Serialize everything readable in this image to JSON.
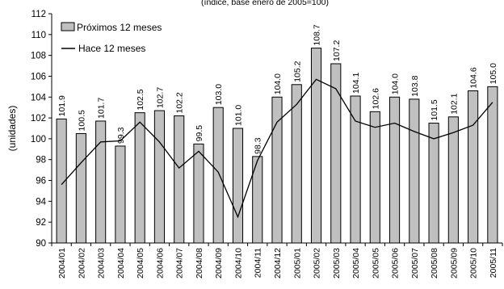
{
  "chart_data": {
    "type": "bar",
    "subtitle": "(índice, base enero de 2005=100)",
    "ylabel": "(unidades)",
    "xlabel": "",
    "ylim": [
      90,
      112
    ],
    "y_ticks": [
      90,
      92,
      94,
      96,
      98,
      100,
      102,
      104,
      106,
      108,
      110,
      112
    ],
    "grid": false,
    "legend_position": "top-left",
    "categories": [
      "2004/01",
      "2004/02",
      "2004/03",
      "2004/04",
      "2004/05",
      "2004/06",
      "2004/07",
      "2004/08",
      "2004/09",
      "2004/10",
      "2004/11",
      "2004/12",
      "2005/01",
      "2005/02",
      "2005/03",
      "2005/04",
      "2005/05",
      "2005/06",
      "2005/07",
      "2005/08",
      "2005/09",
      "2005/10",
      "2005/11"
    ],
    "series": [
      {
        "name": "Próximos 12 meses",
        "kind": "bar",
        "color": "#c0c0c0",
        "values": [
          101.9,
          100.5,
          101.7,
          99.3,
          102.5,
          102.7,
          102.2,
          99.5,
          103.0,
          101.0,
          98.3,
          104.0,
          105.2,
          108.7,
          107.2,
          104.1,
          102.6,
          104.0,
          103.8,
          101.5,
          102.1,
          104.6,
          105.0
        ],
        "data_labels": [
          "101.9",
          "100.5",
          "101.7",
          "99.3",
          "102.5",
          "102.7",
          "102.2",
          "99.5",
          "103.0",
          "101.0",
          "98.3",
          "104.0",
          "105.2",
          "108.7",
          "107.2",
          "104.1",
          "102.6",
          "104.0",
          "103.8",
          "101.5",
          "102.1",
          "104.6",
          "105.0"
        ]
      },
      {
        "name": "Hace 12 meses",
        "kind": "line",
        "color": "#000000",
        "values": [
          95.6,
          97.7,
          99.7,
          99.8,
          101.6,
          99.7,
          97.2,
          98.8,
          96.8,
          92.5,
          97.9,
          101.6,
          103.3,
          105.7,
          104.8,
          101.7,
          101.1,
          101.5,
          100.7,
          100.0,
          100.6,
          101.3,
          103.5
        ]
      }
    ]
  }
}
